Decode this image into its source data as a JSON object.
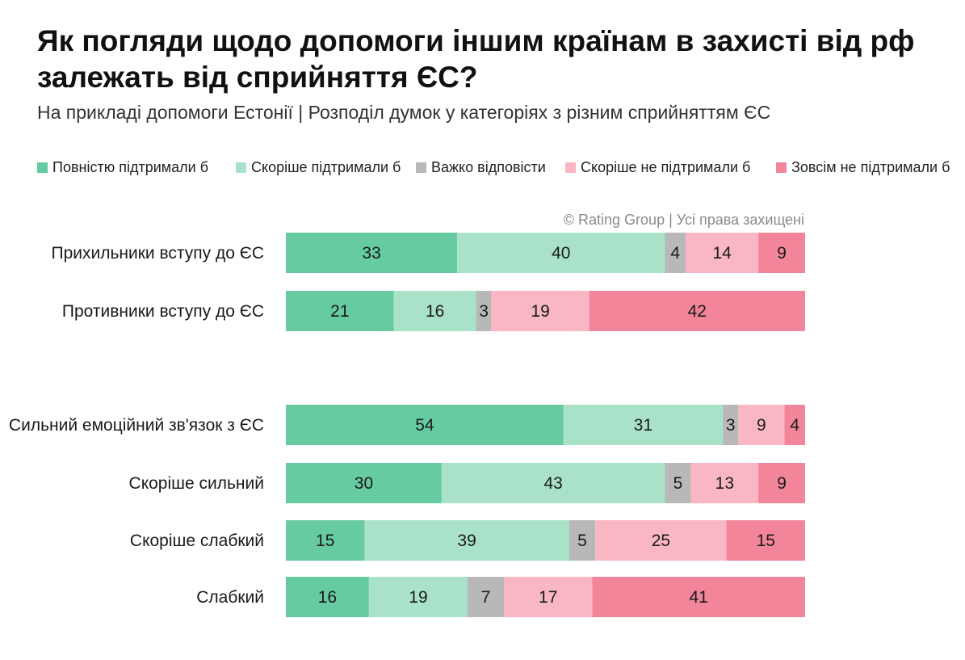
{
  "title": "Як погляди щодо допомоги іншим країнам в захисті від рф залежать від сприйняття ЄС?",
  "subtitle": "На прикладі допомоги Естонії | Розподіл думок у категоріях з різним сприйняттям ЄС",
  "credit": "© Rating Group | Усі права захищені",
  "chart_data": {
    "type": "bar",
    "orientation": "horizontal",
    "stacked": true,
    "normalized_percent": true,
    "legend_position": "top",
    "grid": false,
    "xlim": [
      0,
      100
    ],
    "categories": [
      "Прихильники вступу до ЄС",
      "Противники вступу до ЄС",
      "Сильний емоційний зв'язок з ЄС",
      "Скоріше сильний",
      "Скоріше слабкий",
      "Слабкий"
    ],
    "groups": [
      [
        0,
        1
      ],
      [
        2,
        3,
        4,
        5
      ]
    ],
    "series": [
      {
        "name": "Повністю підтримали б",
        "color": "#66cba1",
        "values": [
          33,
          21,
          54,
          30,
          15,
          16
        ]
      },
      {
        "name": "Скоріше підтримали б",
        "color": "#a9e2c9",
        "values": [
          40,
          16,
          31,
          43,
          39,
          19
        ]
      },
      {
        "name": "Важко відповісти",
        "color": "#b8b8b8",
        "values": [
          4,
          3,
          3,
          5,
          5,
          7
        ]
      },
      {
        "name": "Скоріше не підтримали б",
        "color": "#f9b7c3",
        "values": [
          14,
          19,
          9,
          13,
          25,
          17
        ]
      },
      {
        "name": "Зовсім не підтримали б",
        "color": "#f2859a",
        "values": [
          9,
          42,
          4,
          9,
          15,
          41
        ]
      }
    ]
  }
}
